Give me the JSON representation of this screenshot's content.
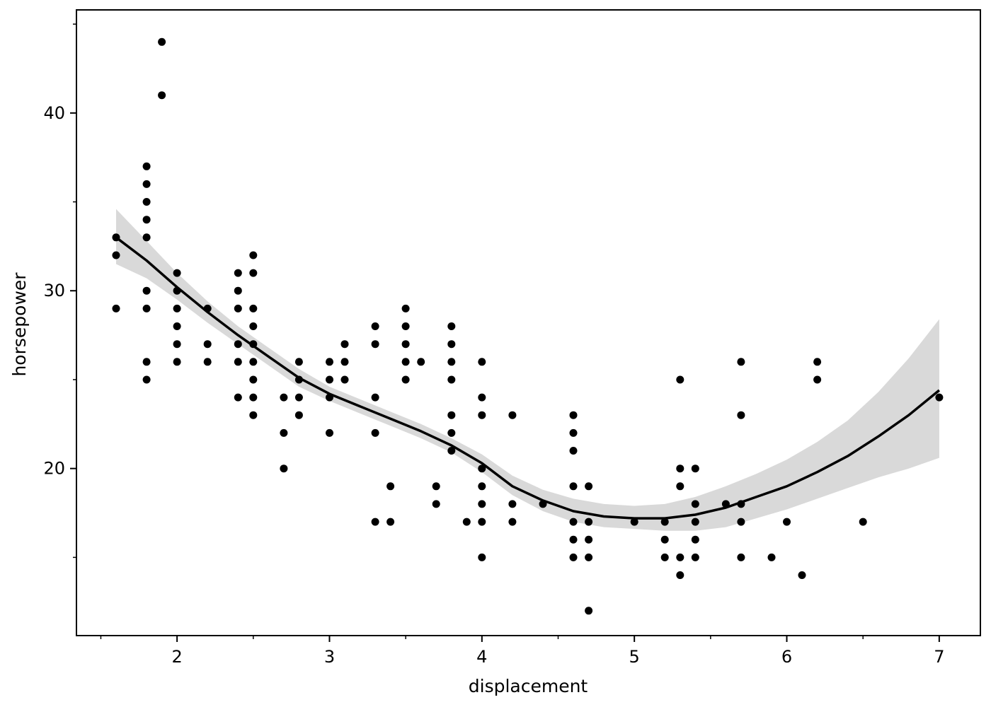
{
  "chart_data": {
    "type": "scatter",
    "title": "",
    "xlabel": "displacement",
    "ylabel": "horsepower",
    "xlim": [
      1.34,
      7.27
    ],
    "ylim": [
      10.6,
      45.8
    ],
    "x_ticks": [
      2,
      3,
      4,
      5,
      6,
      7
    ],
    "x_minor_ticks": [
      1.5,
      2.5,
      3.5,
      4.5,
      5.5,
      6.5
    ],
    "y_ticks": [
      20,
      30,
      40
    ],
    "y_minor_ticks": [
      15,
      25,
      35,
      45
    ],
    "grid": false,
    "legend": "none",
    "colors": {
      "points": "#000000",
      "smooth_line": "#000000",
      "confidence_band": "#d9d9d9",
      "axes": "#000000",
      "background": "#ffffff"
    },
    "points": [
      [
        1.6,
        33
      ],
      [
        1.6,
        32
      ],
      [
        1.6,
        29
      ],
      [
        1.8,
        37
      ],
      [
        1.8,
        36
      ],
      [
        1.8,
        35
      ],
      [
        1.8,
        34
      ],
      [
        1.8,
        33
      ],
      [
        1.8,
        30
      ],
      [
        1.8,
        29
      ],
      [
        1.8,
        26
      ],
      [
        1.8,
        25
      ],
      [
        1.9,
        44
      ],
      [
        1.9,
        41
      ],
      [
        2.0,
        31
      ],
      [
        2.0,
        30
      ],
      [
        2.0,
        29
      ],
      [
        2.0,
        28
      ],
      [
        2.0,
        27
      ],
      [
        2.0,
        26
      ],
      [
        2.2,
        29
      ],
      [
        2.2,
        27
      ],
      [
        2.2,
        26
      ],
      [
        2.4,
        31
      ],
      [
        2.4,
        30
      ],
      [
        2.4,
        29
      ],
      [
        2.4,
        27
      ],
      [
        2.4,
        26
      ],
      [
        2.4,
        24
      ],
      [
        2.5,
        32
      ],
      [
        2.5,
        31
      ],
      [
        2.5,
        29
      ],
      [
        2.5,
        28
      ],
      [
        2.5,
        27
      ],
      [
        2.5,
        26
      ],
      [
        2.5,
        25
      ],
      [
        2.5,
        24
      ],
      [
        2.5,
        23
      ],
      [
        2.7,
        24
      ],
      [
        2.7,
        22
      ],
      [
        2.7,
        20
      ],
      [
        2.8,
        26
      ],
      [
        2.8,
        25
      ],
      [
        2.8,
        24
      ],
      [
        2.8,
        23
      ],
      [
        3.0,
        26
      ],
      [
        3.0,
        25
      ],
      [
        3.0,
        24
      ],
      [
        3.0,
        22
      ],
      [
        3.1,
        27
      ],
      [
        3.1,
        26
      ],
      [
        3.1,
        25
      ],
      [
        3.3,
        28
      ],
      [
        3.3,
        27
      ],
      [
        3.3,
        24
      ],
      [
        3.3,
        22
      ],
      [
        3.3,
        17
      ],
      [
        3.4,
        19
      ],
      [
        3.4,
        17
      ],
      [
        3.5,
        29
      ],
      [
        3.5,
        28
      ],
      [
        3.5,
        27
      ],
      [
        3.5,
        26
      ],
      [
        3.5,
        25
      ],
      [
        3.6,
        26
      ],
      [
        3.7,
        19
      ],
      [
        3.7,
        18
      ],
      [
        3.8,
        28
      ],
      [
        3.8,
        27
      ],
      [
        3.8,
        26
      ],
      [
        3.8,
        25
      ],
      [
        3.8,
        23
      ],
      [
        3.8,
        22
      ],
      [
        3.8,
        21
      ],
      [
        3.9,
        17
      ],
      [
        4.0,
        26
      ],
      [
        4.0,
        24
      ],
      [
        4.0,
        23
      ],
      [
        4.0,
        20
      ],
      [
        4.0,
        19
      ],
      [
        4.0,
        18
      ],
      [
        4.0,
        17
      ],
      [
        4.0,
        15
      ],
      [
        4.2,
        23
      ],
      [
        4.2,
        18
      ],
      [
        4.2,
        17
      ],
      [
        4.4,
        18
      ],
      [
        4.6,
        23
      ],
      [
        4.6,
        22
      ],
      [
        4.6,
        21
      ],
      [
        4.6,
        19
      ],
      [
        4.6,
        17
      ],
      [
        4.6,
        16
      ],
      [
        4.6,
        15
      ],
      [
        4.7,
        19
      ],
      [
        4.7,
        17
      ],
      [
        4.7,
        16
      ],
      [
        4.7,
        15
      ],
      [
        4.7,
        12
      ],
      [
        5.0,
        17
      ],
      [
        5.2,
        17
      ],
      [
        5.2,
        16
      ],
      [
        5.2,
        15
      ],
      [
        5.3,
        25
      ],
      [
        5.3,
        20
      ],
      [
        5.3,
        19
      ],
      [
        5.3,
        15
      ],
      [
        5.3,
        14
      ],
      [
        5.4,
        20
      ],
      [
        5.4,
        18
      ],
      [
        5.4,
        17
      ],
      [
        5.4,
        16
      ],
      [
        5.4,
        15
      ],
      [
        5.6,
        18
      ],
      [
        5.7,
        26
      ],
      [
        5.7,
        23
      ],
      [
        5.7,
        18
      ],
      [
        5.7,
        17
      ],
      [
        5.7,
        15
      ],
      [
        5.9,
        15
      ],
      [
        6.0,
        17
      ],
      [
        6.1,
        14
      ],
      [
        6.2,
        26
      ],
      [
        6.2,
        25
      ],
      [
        6.5,
        17
      ],
      [
        7.0,
        24
      ]
    ],
    "smooth": {
      "x": [
        1.6,
        1.8,
        2.0,
        2.2,
        2.4,
        2.6,
        2.8,
        3.0,
        3.2,
        3.4,
        3.6,
        3.8,
        4.0,
        4.2,
        4.4,
        4.6,
        4.8,
        5.0,
        5.2,
        5.4,
        5.6,
        5.8,
        6.0,
        6.2,
        6.4,
        6.6,
        6.8,
        7.0
      ],
      "y": [
        33.0,
        31.7,
        30.2,
        28.8,
        27.5,
        26.3,
        25.1,
        24.2,
        23.5,
        22.8,
        22.1,
        21.3,
        20.3,
        19.0,
        18.2,
        17.6,
        17.3,
        17.2,
        17.2,
        17.4,
        17.8,
        18.4,
        19.0,
        19.8,
        20.7,
        21.8,
        23.0,
        24.4
      ],
      "lower": [
        31.5,
        30.7,
        29.5,
        28.2,
        27.0,
        25.8,
        24.6,
        23.8,
        23.1,
        22.4,
        21.7,
        20.9,
        19.8,
        18.5,
        17.6,
        17.0,
        16.7,
        16.6,
        16.5,
        16.5,
        16.7,
        17.2,
        17.7,
        18.3,
        18.9,
        19.5,
        20.0,
        20.6
      ],
      "upper": [
        34.6,
        32.8,
        31.0,
        29.4,
        28.0,
        26.8,
        25.6,
        24.6,
        23.9,
        23.2,
        22.5,
        21.7,
        20.8,
        19.6,
        18.8,
        18.3,
        18.0,
        17.9,
        18.0,
        18.4,
        19.0,
        19.7,
        20.5,
        21.5,
        22.7,
        24.3,
        26.2,
        28.4
      ]
    }
  }
}
